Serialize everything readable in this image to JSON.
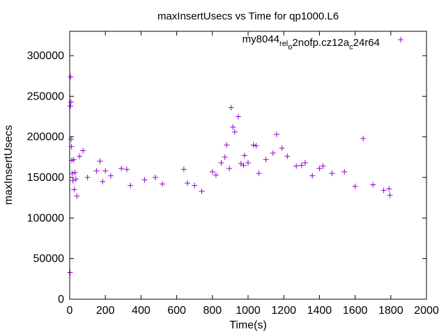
{
  "chart_data": {
    "type": "scatter",
    "title": "maxInsertUsecs vs Time for qp1000.L6",
    "xlabel": "Time(s)",
    "ylabel": "maxInsertUsecs",
    "xlim": [
      0,
      2000
    ],
    "ylim": [
      0,
      330000
    ],
    "x_ticks": [
      0,
      200,
      400,
      600,
      800,
      1000,
      1200,
      1400,
      1600,
      1800,
      2000
    ],
    "y_ticks": [
      0,
      50000,
      100000,
      150000,
      200000,
      250000,
      300000
    ],
    "x_tick_labels": [
      "0",
      "200",
      "400",
      "600",
      "800",
      "1000",
      "1200",
      "1400",
      "1600",
      "1800",
      "2000"
    ],
    "y_tick_labels": [
      "0",
      "50000",
      "100000",
      "150000",
      "200000",
      "250000",
      "300000"
    ],
    "grid": false,
    "legend_position": "top-right",
    "marker": "plus",
    "series": [
      {
        "name": "my8044_rel_o2nofp.cz12a_c24r64",
        "legend_parts": {
          "base1": "my8044",
          "sub1": "rel",
          "base2": "",
          "sub2": "o",
          "base3": "2nofp.cz12a",
          "sub3": "c",
          "base4": "24r64"
        },
        "color": "#9400d3",
        "points": [
          [
            2,
            33000
          ],
          [
            4,
            238000
          ],
          [
            5,
            274000
          ],
          [
            7,
            243000
          ],
          [
            8,
            197000
          ],
          [
            10,
            188000
          ],
          [
            12,
            171000
          ],
          [
            14,
            155000
          ],
          [
            18,
            146000
          ],
          [
            22,
            172000
          ],
          [
            25,
            135000
          ],
          [
            30,
            156000
          ],
          [
            35,
            148000
          ],
          [
            40,
            127000
          ],
          [
            55,
            176000
          ],
          [
            75,
            183000
          ],
          [
            100,
            150000
          ],
          [
            150,
            158000
          ],
          [
            170,
            170000
          ],
          [
            185,
            145000
          ],
          [
            200,
            158000
          ],
          [
            230,
            152000
          ],
          [
            290,
            161000
          ],
          [
            320,
            160000
          ],
          [
            340,
            140000
          ],
          [
            420,
            147000
          ],
          [
            480,
            150000
          ],
          [
            520,
            142000
          ],
          [
            640,
            160000
          ],
          [
            660,
            143000
          ],
          [
            700,
            140000
          ],
          [
            740,
            133000
          ],
          [
            800,
            157000
          ],
          [
            820,
            153000
          ],
          [
            850,
            168000
          ],
          [
            870,
            175000
          ],
          [
            880,
            190000
          ],
          [
            895,
            161000
          ],
          [
            905,
            236000
          ],
          [
            915,
            212000
          ],
          [
            925,
            206000
          ],
          [
            945,
            225000
          ],
          [
            960,
            167000
          ],
          [
            975,
            165000
          ],
          [
            980,
            177000
          ],
          [
            1000,
            168000
          ],
          [
            1030,
            190000
          ],
          [
            1045,
            189000
          ],
          [
            1060,
            155000
          ],
          [
            1100,
            172000
          ],
          [
            1140,
            180000
          ],
          [
            1160,
            203000
          ],
          [
            1190,
            186000
          ],
          [
            1220,
            176000
          ],
          [
            1270,
            164000
          ],
          [
            1300,
            165000
          ],
          [
            1320,
            168000
          ],
          [
            1360,
            152000
          ],
          [
            1400,
            161000
          ],
          [
            1420,
            164000
          ],
          [
            1470,
            155000
          ],
          [
            1540,
            157000
          ],
          [
            1600,
            139000
          ],
          [
            1645,
            198000
          ],
          [
            1700,
            141000
          ],
          [
            1760,
            134000
          ],
          [
            1790,
            136000
          ],
          [
            1795,
            128000
          ]
        ]
      }
    ]
  }
}
